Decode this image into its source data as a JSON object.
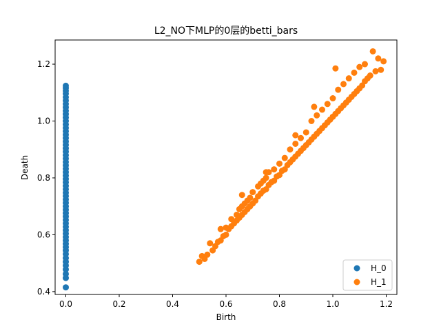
{
  "chart_data": {
    "type": "scatter",
    "title": "L2_NO下MLP的0层的betti_bars",
    "xlabel": "Birth",
    "ylabel": "Death",
    "xlim": [
      -0.04,
      1.24
    ],
    "ylim": [
      0.39,
      1.285
    ],
    "xticks": [
      0.0,
      0.2,
      0.4,
      0.6,
      0.8,
      1.0,
      1.2
    ],
    "yticks": [
      0.4,
      0.6,
      0.8,
      1.0,
      1.2
    ],
    "xtick_labels": [
      "0.0",
      "0.2",
      "0.4",
      "0.6",
      "0.8",
      "1.0",
      "1.2"
    ],
    "ytick_labels": [
      "0.4",
      "0.6",
      "0.8",
      "1.0",
      "1.2"
    ],
    "grid": false,
    "legend_position": "lower-right",
    "series": [
      {
        "name": "H_0",
        "color": "#1f77b4",
        "points": [
          [
            0.0,
            0.415
          ],
          [
            0.0,
            0.448
          ],
          [
            0.0,
            0.462
          ],
          [
            0.0,
            0.478
          ],
          [
            0.0,
            0.492
          ],
          [
            0.0,
            0.505
          ],
          [
            0.0,
            0.518
          ],
          [
            0.0,
            0.532
          ],
          [
            0.0,
            0.545
          ],
          [
            0.0,
            0.556
          ],
          [
            0.0,
            0.568
          ],
          [
            0.0,
            0.58
          ],
          [
            0.0,
            0.592
          ],
          [
            0.0,
            0.604
          ],
          [
            0.0,
            0.616
          ],
          [
            0.0,
            0.628
          ],
          [
            0.0,
            0.64
          ],
          [
            0.0,
            0.652
          ],
          [
            0.0,
            0.664
          ],
          [
            0.0,
            0.676
          ],
          [
            0.0,
            0.688
          ],
          [
            0.0,
            0.7
          ],
          [
            0.0,
            0.712
          ],
          [
            0.0,
            0.724
          ],
          [
            0.0,
            0.736
          ],
          [
            0.0,
            0.748
          ],
          [
            0.0,
            0.76
          ],
          [
            0.0,
            0.772
          ],
          [
            0.0,
            0.784
          ],
          [
            0.0,
            0.796
          ],
          [
            0.0,
            0.808
          ],
          [
            0.0,
            0.82
          ],
          [
            0.0,
            0.832
          ],
          [
            0.0,
            0.844
          ],
          [
            0.0,
            0.856
          ],
          [
            0.0,
            0.868
          ],
          [
            0.0,
            0.88
          ],
          [
            0.0,
            0.892
          ],
          [
            0.0,
            0.904
          ],
          [
            0.0,
            0.916
          ],
          [
            0.0,
            0.928
          ],
          [
            0.0,
            0.94
          ],
          [
            0.0,
            0.952
          ],
          [
            0.0,
            0.964
          ],
          [
            0.0,
            0.976
          ],
          [
            0.0,
            0.988
          ],
          [
            0.0,
            1.0
          ],
          [
            0.0,
            1.012
          ],
          [
            0.0,
            1.024
          ],
          [
            0.0,
            1.036
          ],
          [
            0.0,
            1.048
          ],
          [
            0.0,
            1.06
          ],
          [
            0.0,
            1.072
          ],
          [
            0.0,
            1.084
          ],
          [
            0.0,
            1.096
          ],
          [
            0.0,
            1.106
          ],
          [
            0.0,
            1.116
          ],
          [
            0.0,
            1.124
          ]
        ]
      },
      {
        "name": "H_1",
        "color": "#ff7f0e",
        "points": [
          [
            0.5,
            0.505
          ],
          [
            0.51,
            0.525
          ],
          [
            0.52,
            0.515
          ],
          [
            0.53,
            0.53
          ],
          [
            0.55,
            0.545
          ],
          [
            0.56,
            0.56
          ],
          [
            0.57,
            0.575
          ],
          [
            0.58,
            0.58
          ],
          [
            0.59,
            0.595
          ],
          [
            0.6,
            0.6
          ],
          [
            0.6,
            0.625
          ],
          [
            0.61,
            0.62
          ],
          [
            0.62,
            0.63
          ],
          [
            0.62,
            0.655
          ],
          [
            0.63,
            0.64
          ],
          [
            0.64,
            0.65
          ],
          [
            0.64,
            0.67
          ],
          [
            0.65,
            0.66
          ],
          [
            0.65,
            0.69
          ],
          [
            0.66,
            0.67
          ],
          [
            0.66,
            0.7
          ],
          [
            0.67,
            0.68
          ],
          [
            0.67,
            0.71
          ],
          [
            0.68,
            0.69
          ],
          [
            0.68,
            0.72
          ],
          [
            0.69,
            0.7
          ],
          [
            0.69,
            0.73
          ],
          [
            0.7,
            0.71
          ],
          [
            0.7,
            0.75
          ],
          [
            0.71,
            0.72
          ],
          [
            0.72,
            0.735
          ],
          [
            0.72,
            0.77
          ],
          [
            0.73,
            0.745
          ],
          [
            0.73,
            0.78
          ],
          [
            0.74,
            0.755
          ],
          [
            0.74,
            0.79
          ],
          [
            0.75,
            0.76
          ],
          [
            0.75,
            0.8
          ],
          [
            0.76,
            0.775
          ],
          [
            0.76,
            0.82
          ],
          [
            0.77,
            0.785
          ],
          [
            0.78,
            0.79
          ],
          [
            0.78,
            0.83
          ],
          [
            0.79,
            0.805
          ],
          [
            0.8,
            0.81
          ],
          [
            0.8,
            0.85
          ],
          [
            0.81,
            0.825
          ],
          [
            0.82,
            0.83
          ],
          [
            0.82,
            0.87
          ],
          [
            0.83,
            0.845
          ],
          [
            0.84,
            0.855
          ],
          [
            0.84,
            0.9
          ],
          [
            0.85,
            0.865
          ],
          [
            0.86,
            0.875
          ],
          [
            0.86,
            0.92
          ],
          [
            0.87,
            0.885
          ],
          [
            0.88,
            0.895
          ],
          [
            0.88,
            0.94
          ],
          [
            0.89,
            0.905
          ],
          [
            0.9,
            0.915
          ],
          [
            0.9,
            0.96
          ],
          [
            0.91,
            0.925
          ],
          [
            0.92,
            0.935
          ],
          [
            0.92,
            1.0
          ],
          [
            0.93,
            0.945
          ],
          [
            0.94,
            0.955
          ],
          [
            0.94,
            1.02
          ],
          [
            0.95,
            0.965
          ],
          [
            0.96,
            0.975
          ],
          [
            0.96,
            1.04
          ],
          [
            0.97,
            0.985
          ],
          [
            0.98,
            0.995
          ],
          [
            0.98,
            1.06
          ],
          [
            0.99,
            1.005
          ],
          [
            1.0,
            1.015
          ],
          [
            1.0,
            1.08
          ],
          [
            1.01,
            1.025
          ],
          [
            1.02,
            1.035
          ],
          [
            1.02,
            1.11
          ],
          [
            1.03,
            1.045
          ],
          [
            1.04,
            1.055
          ],
          [
            1.04,
            1.13
          ],
          [
            1.05,
            1.065
          ],
          [
            1.06,
            1.075
          ],
          [
            1.06,
            1.15
          ],
          [
            1.07,
            1.085
          ],
          [
            1.08,
            1.095
          ],
          [
            1.08,
            1.17
          ],
          [
            1.09,
            1.105
          ],
          [
            1.1,
            1.115
          ],
          [
            1.1,
            1.19
          ],
          [
            1.11,
            1.125
          ],
          [
            1.12,
            1.14
          ],
          [
            1.12,
            1.2
          ],
          [
            1.13,
            1.15
          ],
          [
            1.14,
            1.16
          ],
          [
            1.15,
            1.245
          ],
          [
            1.16,
            1.175
          ],
          [
            1.17,
            1.22
          ],
          [
            1.19,
            1.21
          ],
          [
            1.01,
            1.185
          ],
          [
            0.93,
            1.05
          ],
          [
            0.86,
            0.95
          ],
          [
            0.75,
            0.82
          ],
          [
            0.66,
            0.74
          ],
          [
            0.58,
            0.62
          ],
          [
            0.54,
            0.57
          ],
          [
            1.18,
            1.18
          ]
        ]
      }
    ]
  }
}
